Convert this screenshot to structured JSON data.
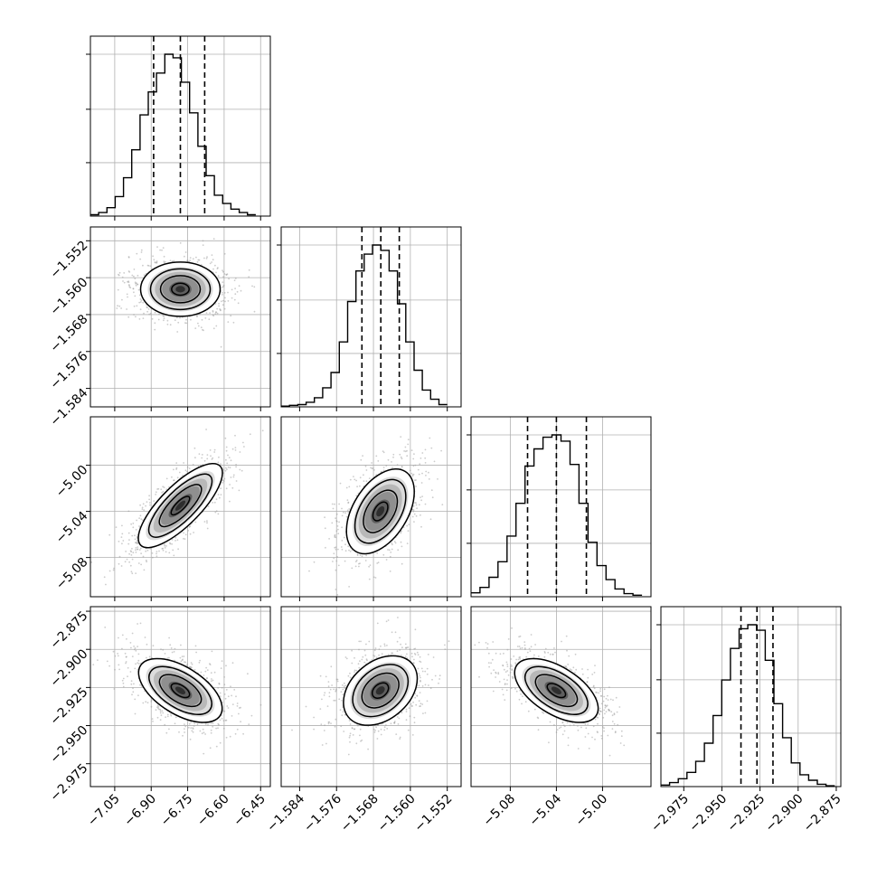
{
  "chart_data": {
    "type": "corner",
    "parameters": 4,
    "colors": {
      "line": "#000000",
      "grid": "#b0b0b0",
      "points": "#9a9a9a"
    },
    "grid": true,
    "marginals": [
      {
        "lim": [
          -7.15,
          -6.41
        ],
        "quantiles": [
          -6.89,
          -6.78,
          -6.68
        ],
        "bin_edges": [
          -7.15,
          -7.116,
          -7.082,
          -7.048,
          -7.014,
          -6.98,
          -6.946,
          -6.912,
          -6.878,
          -6.844,
          -6.81,
          -6.776,
          -6.742,
          -6.708,
          -6.674,
          -6.64,
          -6.606,
          -6.572,
          -6.538,
          -6.504,
          -6.47
        ],
        "counts": [
          2,
          5,
          12,
          28,
          55,
          95,
          145,
          178,
          205,
          232,
          227,
          192,
          148,
          100,
          58,
          30,
          18,
          10,
          5,
          2
        ]
      },
      {
        "lim": [
          -1.588,
          -1.549
        ],
        "quantiles": [
          -1.5705,
          -1.5664,
          -1.5624
        ],
        "bin_edges": [
          -1.588,
          -1.5862,
          -1.5844,
          -1.5826,
          -1.5808,
          -1.579,
          -1.5772,
          -1.5754,
          -1.5736,
          -1.5718,
          -1.57,
          -1.5682,
          -1.5664,
          -1.5646,
          -1.5628,
          -1.561,
          -1.5592,
          -1.5574,
          -1.5556,
          -1.5538,
          -1.552
        ],
        "counts": [
          1,
          2,
          3,
          6,
          12,
          25,
          45,
          85,
          138,
          178,
          200,
          212,
          205,
          178,
          135,
          85,
          48,
          22,
          10,
          3
        ]
      },
      {
        "lim": [
          -5.114,
          -4.958
        ],
        "quantiles": [
          -5.065,
          -5.04,
          -5.014
        ],
        "bin_edges": [
          -5.114,
          -5.1062,
          -5.0984,
          -5.0906,
          -5.0828,
          -5.075,
          -5.0672,
          -5.0594,
          -5.0516,
          -5.0438,
          -5.036,
          -5.0282,
          -5.0204,
          -5.0126,
          -5.0048,
          -4.997,
          -4.9892,
          -4.9814,
          -4.9736,
          -4.9658
        ],
        "counts": [
          5,
          12,
          25,
          45,
          78,
          120,
          168,
          190,
          205,
          208,
          200,
          170,
          120,
          70,
          40,
          22,
          10,
          4,
          2
        ]
      },
      {
        "lim": [
          -2.99,
          -2.872
        ],
        "quantiles": [
          -2.9375,
          -2.927,
          -2.9165
        ],
        "bin_edges": [
          -2.99,
          -2.9843,
          -2.9786,
          -2.9729,
          -2.9672,
          -2.9615,
          -2.9558,
          -2.9501,
          -2.9444,
          -2.9387,
          -2.933,
          -2.9273,
          -2.9216,
          -2.9159,
          -2.9102,
          -2.9045,
          -2.8988,
          -2.8931,
          -2.8874,
          -2.8817,
          -2.876
        ],
        "counts": [
          2,
          5,
          10,
          18,
          32,
          55,
          90,
          135,
          175,
          200,
          205,
          198,
          160,
          105,
          62,
          30,
          15,
          8,
          3,
          1
        ]
      }
    ],
    "pairs": [
      {
        "row": 1,
        "col": 0,
        "center": [
          -6.78,
          -1.5625
        ],
        "orientation": "round"
      },
      {
        "row": 2,
        "col": 0,
        "center": [
          -6.78,
          -5.035
        ],
        "orientation": "positive"
      },
      {
        "row": 2,
        "col": 1,
        "center": [
          -1.5665,
          -5.04
        ],
        "orientation": "positive"
      },
      {
        "row": 3,
        "col": 0,
        "center": [
          -6.78,
          -2.927
        ],
        "orientation": "negative"
      },
      {
        "row": 3,
        "col": 1,
        "center": [
          -1.5665,
          -2.927
        ],
        "orientation": "positive"
      },
      {
        "row": 3,
        "col": 2,
        "center": [
          -5.04,
          -2.927
        ],
        "orientation": "negative"
      }
    ],
    "x_ticks": [
      {
        "values": [
          -7.05,
          -6.9,
          -6.75,
          -6.6,
          -6.45
        ],
        "labels": [
          "−7.05",
          "−6.90",
          "−6.75",
          "−6.60",
          "−6.45"
        ]
      },
      {
        "values": [
          -1.584,
          -1.576,
          -1.568,
          -1.56,
          -1.552
        ],
        "labels": [
          "−1.584",
          "−1.576",
          "−1.568",
          "−1.560",
          "−1.552"
        ]
      },
      {
        "values": [
          -5.08,
          -5.04,
          -5.0
        ],
        "labels": [
          "−5.08",
          "−5.04",
          "−5.00"
        ]
      },
      {
        "values": [
          -2.975,
          -2.95,
          -2.925,
          -2.9,
          -2.875
        ],
        "labels": [
          "−2.975",
          "−2.950",
          "−2.925",
          "−2.900",
          "−2.875"
        ]
      }
    ],
    "y_ticks": [
      {
        "row": 1,
        "values": [
          -1.552,
          -1.56,
          -1.568,
          -1.576,
          -1.584
        ],
        "labels": [
          "−1.552",
          "−1.560",
          "−1.568",
          "−1.576",
          "−1.584"
        ]
      },
      {
        "row": 2,
        "values": [
          -5.0,
          -5.04,
          -5.08
        ],
        "labels": [
          "−5.00",
          "−5.04",
          "−5.08"
        ]
      },
      {
        "row": 3,
        "values": [
          -2.875,
          -2.9,
          -2.925,
          -2.95,
          -2.975
        ],
        "labels": [
          "−2.875",
          "−2.900",
          "−2.925",
          "−2.950",
          "−2.975"
        ]
      }
    ]
  }
}
